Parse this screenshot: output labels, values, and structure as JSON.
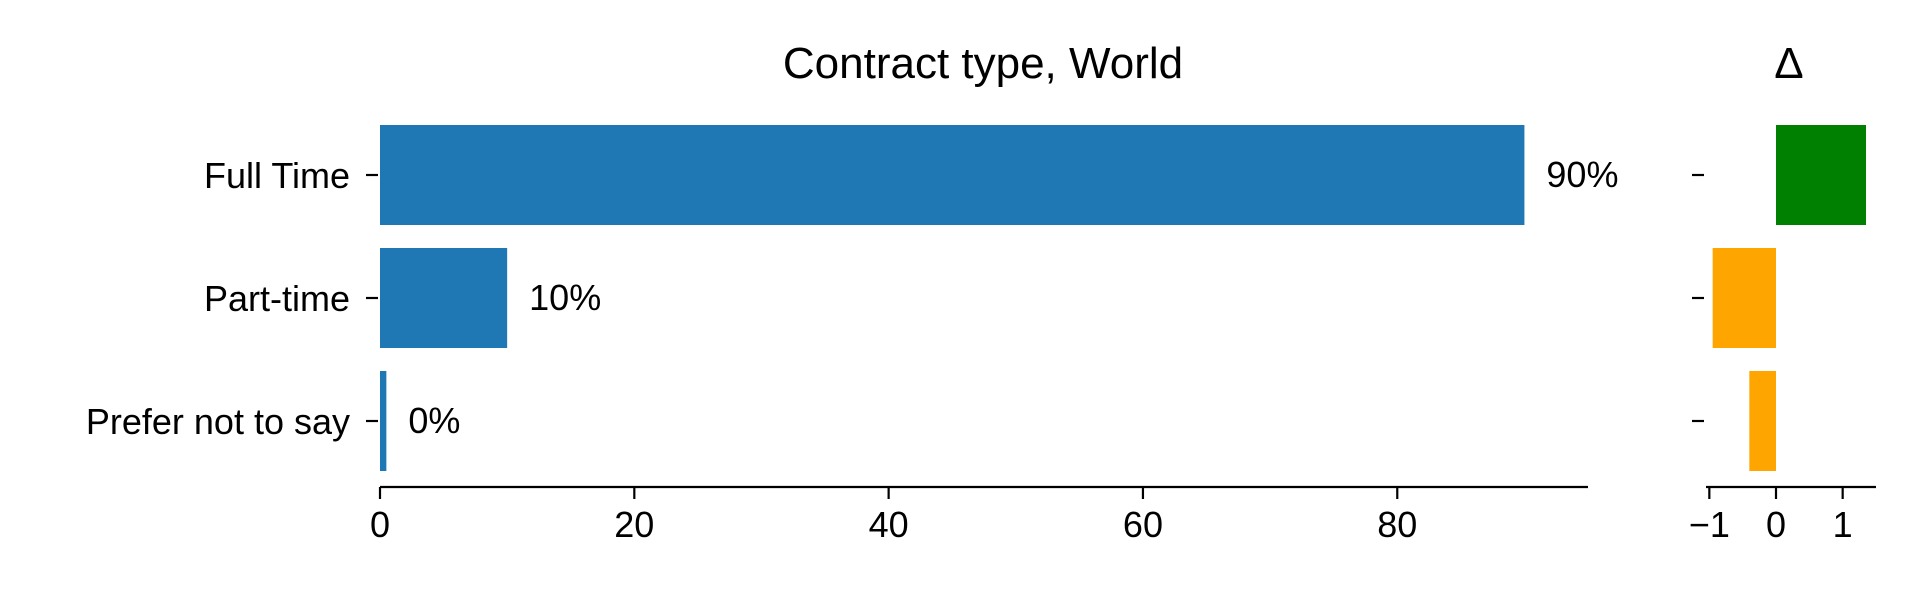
{
  "chart_data": [
    {
      "type": "bar",
      "orientation": "horizontal",
      "title": "Contract type, World",
      "categories": [
        "Full Time",
        "Part-time",
        "Prefer not to say"
      ],
      "values": [
        90,
        10,
        0.5
      ],
      "data_labels": [
        "90%",
        "10%",
        "0%"
      ],
      "xlim": [
        0,
        95
      ],
      "x_ticks": [
        0,
        20,
        40,
        60,
        80
      ],
      "x_tick_labels": [
        "0",
        "20",
        "40",
        "60",
        "80"
      ],
      "xlabel": "",
      "ylabel": "",
      "grid": false,
      "colors": {
        "bar": "#1f77b4"
      }
    },
    {
      "type": "bar",
      "orientation": "horizontal",
      "title": "Δ",
      "categories": [
        "Full Time",
        "Part-time",
        "Prefer not to say"
      ],
      "values": [
        1.35,
        -0.95,
        -0.4
      ],
      "xlim": [
        -1.05,
        1.5
      ],
      "x_ticks": [
        -1,
        0,
        1
      ],
      "x_tick_labels": [
        "−1",
        "0",
        "1"
      ],
      "grid": false,
      "colors": {
        "positive": "#008000",
        "negative": "#ffa500"
      }
    }
  ]
}
